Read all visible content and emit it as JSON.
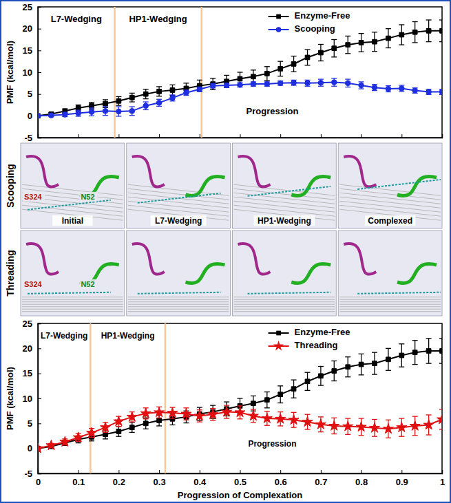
{
  "chart_data": [
    {
      "type": "line",
      "x": [
        0,
        0.033,
        0.067,
        0.1,
        0.133,
        0.167,
        0.2,
        0.233,
        0.267,
        0.3,
        0.333,
        0.367,
        0.4,
        0.433,
        0.467,
        0.5,
        0.533,
        0.567,
        0.6,
        0.633,
        0.667,
        0.7,
        0.733,
        0.767,
        0.8,
        0.833,
        0.867,
        0.9,
        0.933,
        0.967,
        1
      ],
      "xlim": [
        0,
        1
      ],
      "xticks": [
        0,
        0.1,
        0.2,
        0.3,
        0.4,
        0.5,
        0.6,
        0.7,
        0.8,
        0.9,
        1
      ],
      "ylim": [
        -5,
        25
      ],
      "yticks": [
        -5,
        0,
        5,
        10,
        15,
        20,
        25
      ],
      "y_label": "PMF (kcal/mol)",
      "tick_labels": "y",
      "legend": "top",
      "annotations": [
        "L7-Wedging",
        "HP1-Wedging",
        "Progression"
      ],
      "boundaries": [
        0.19,
        0.405
      ],
      "series": [
        {
          "name": "Enzyme-Free",
          "color": "#000000",
          "marker": "square",
          "values": [
            0,
            0.4,
            1.1,
            1.8,
            2.3,
            2.8,
            3.4,
            4.2,
            5.0,
            5.6,
            5.9,
            6.3,
            6.9,
            7.3,
            7.9,
            8.5,
            9.0,
            9.7,
            10.8,
            11.9,
            13.4,
            14.5,
            15.5,
            16.3,
            16.8,
            17.0,
            17.8,
            18.6,
            19.2,
            19.5,
            19.5
          ],
          "errors": [
            0.1,
            0.3,
            0.5,
            0.7,
            0.8,
            0.9,
            1.0,
            1.0,
            1.1,
            1.1,
            1.2,
            1.2,
            1.3,
            1.3,
            1.4,
            1.5,
            1.5,
            1.6,
            1.7,
            1.8,
            1.8,
            1.9,
            2.0,
            2.0,
            2.1,
            2.2,
            2.2,
            2.3,
            2.4,
            2.5,
            2.5
          ]
        },
        {
          "name": "Scooping",
          "color": "#1f2fe0",
          "marker": "circle",
          "values": [
            0,
            0.1,
            0.3,
            0.6,
            0.9,
            1.1,
            1.0,
            1.1,
            2.3,
            3.0,
            4.1,
            5.3,
            6.1,
            6.9,
            7.0,
            7.1,
            7.3,
            7.3,
            7.5,
            7.6,
            7.5,
            7.6,
            7.7,
            7.5,
            7.0,
            6.5,
            6.2,
            6.3,
            5.8,
            5.5,
            5.5
          ],
          "errors": [
            0.1,
            0.3,
            0.5,
            0.7,
            0.9,
            1.0,
            1.1,
            1.0,
            0.9,
            0.8,
            0.7,
            0.6,
            0.5,
            0.5,
            0.5,
            0.5,
            0.5,
            0.5,
            0.5,
            0.6,
            0.7,
            0.8,
            0.9,
            0.9,
            0.8,
            0.7,
            0.7,
            0.7,
            0.6,
            0.6,
            0.6
          ]
        }
      ]
    },
    {
      "type": "line",
      "x": [
        0,
        0.033,
        0.067,
        0.1,
        0.133,
        0.167,
        0.2,
        0.233,
        0.267,
        0.3,
        0.333,
        0.367,
        0.4,
        0.433,
        0.467,
        0.5,
        0.533,
        0.567,
        0.6,
        0.633,
        0.667,
        0.7,
        0.733,
        0.767,
        0.8,
        0.833,
        0.867,
        0.9,
        0.933,
        0.967,
        1
      ],
      "xlim": [
        0,
        1
      ],
      "xticks": [
        0,
        0.1,
        0.2,
        0.3,
        0.4,
        0.5,
        0.6,
        0.7,
        0.8,
        0.9,
        1
      ],
      "ylim": [
        -5,
        25
      ],
      "yticks": [
        -5,
        0,
        5,
        10,
        15,
        20,
        25
      ],
      "x_label": "Progression of Complexation",
      "y_label": "PMF (kcal/mol)",
      "legend": "top",
      "annotations": [
        "L7-Wedging",
        "HP1-Wedging",
        "Progression"
      ],
      "boundaries": [
        0.13,
        0.315
      ],
      "series": [
        {
          "name": "Enzyme-Free",
          "color": "#000000",
          "marker": "square",
          "values": [
            0,
            0.4,
            1.1,
            1.8,
            2.3,
            2.8,
            3.4,
            4.2,
            5.0,
            5.6,
            5.9,
            6.3,
            6.9,
            7.3,
            7.9,
            8.5,
            9.0,
            9.7,
            10.8,
            11.9,
            13.4,
            14.5,
            15.5,
            16.3,
            16.8,
            17.0,
            17.8,
            18.6,
            19.2,
            19.5,
            19.5
          ],
          "errors": [
            0.1,
            0.3,
            0.5,
            0.7,
            0.8,
            0.9,
            1.0,
            1.0,
            1.1,
            1.1,
            1.2,
            1.2,
            1.3,
            1.3,
            1.4,
            1.5,
            1.5,
            1.6,
            1.7,
            1.8,
            1.8,
            1.9,
            2.0,
            2.0,
            2.1,
            2.2,
            2.2,
            2.3,
            2.4,
            2.5,
            2.5
          ]
        },
        {
          "name": "Threading",
          "color": "#e01010",
          "marker": "star",
          "values": [
            0,
            0.6,
            1.3,
            2.2,
            3.1,
            4.2,
            5.4,
            6.3,
            7.0,
            7.2,
            7.1,
            6.9,
            6.5,
            6.8,
            7.3,
            7.2,
            6.5,
            6.0,
            5.9,
            5.7,
            5.3,
            4.8,
            4.5,
            4.4,
            4.3,
            4.1,
            3.9,
            4.2,
            4.5,
            4.7,
            5.8
          ],
          "errors": [
            0.2,
            0.4,
            0.6,
            0.8,
            0.9,
            1.0,
            1.0,
            1.0,
            1.1,
            1.1,
            1.1,
            1.2,
            1.2,
            1.2,
            1.3,
            1.3,
            1.3,
            1.4,
            1.4,
            1.5,
            1.5,
            1.5,
            1.6,
            1.6,
            1.7,
            1.7,
            1.8,
            1.8,
            1.9,
            2.0,
            2.0
          ]
        }
      ]
    }
  ],
  "image_panels": {
    "rows": [
      {
        "label": "Scooping",
        "residues": [
          "S324",
          "N52"
        ],
        "captions": [
          "Initial",
          "L7-Wedging",
          "HP1-Wedging",
          "Complexed"
        ]
      },
      {
        "label": "Threading",
        "residues": [
          "S324",
          "N52"
        ]
      }
    ]
  }
}
